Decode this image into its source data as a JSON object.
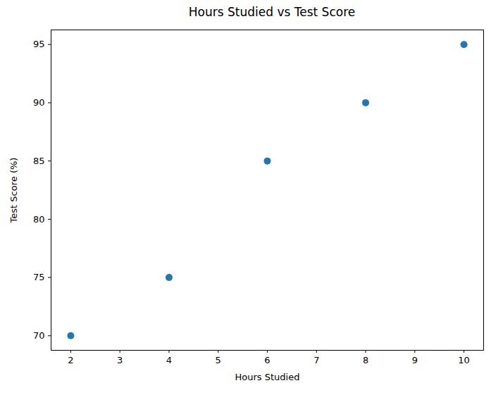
{
  "chart_data": {
    "type": "scatter",
    "title": "Hours Studied vs Test Score",
    "x_label": "Hours Studied",
    "y_label": "Test Score (%)",
    "x": [
      2,
      4,
      6,
      8,
      10
    ],
    "values": [
      70,
      75,
      85,
      90,
      95
    ],
    "color": "#1f77b4",
    "marker": "o",
    "xlim": [
      1.6,
      10.4
    ],
    "xticks": [
      2,
      3,
      4,
      5,
      6,
      7,
      8,
      9,
      10
    ],
    "ylim": [
      68.75,
      96.25
    ],
    "yticks": [
      70,
      75,
      80,
      85,
      90,
      95
    ],
    "grid": false
  }
}
